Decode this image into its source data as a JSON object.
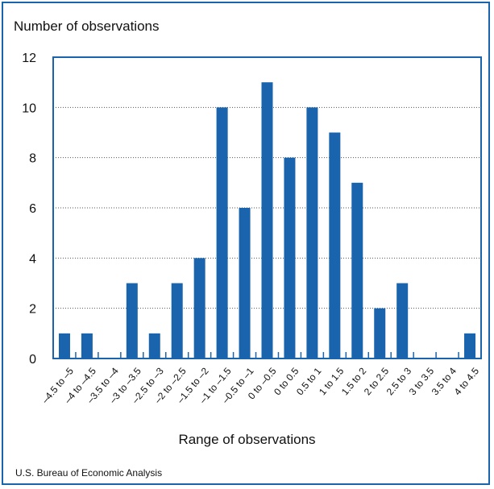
{
  "chart_data": {
    "type": "bar",
    "ylabel": "Number of observations",
    "xlabel": "Range of observations",
    "source": "U.S. Bureau of Economic Analysis",
    "categories": [
      "–4.5 to –5",
      "–4 to –4.5",
      "–3.5 to –4",
      "–3 to –3.5",
      "–2.5 to –3",
      "–2 to –2.5",
      "–1.5 to –2",
      "–1 to –1.5",
      "–0.5 to –1",
      "0 to –0.5",
      "0 to 0.5",
      "0.5 to 1",
      "1 to 1.5",
      "1.5 to 2",
      "2 to 2.5",
      "2.5 to 3",
      "3 to 3.5",
      "3.5 to 4",
      "4 to 4.5"
    ],
    "values": [
      1,
      1,
      0,
      3,
      1,
      3,
      4,
      10,
      6,
      11,
      8,
      10,
      9,
      7,
      2,
      3,
      0,
      0,
      1
    ],
    "ylim": [
      0,
      12
    ],
    "yticks": [
      0,
      2,
      4,
      6,
      8,
      10,
      12
    ],
    "grid": true,
    "bar_color": "#1a64ad"
  }
}
